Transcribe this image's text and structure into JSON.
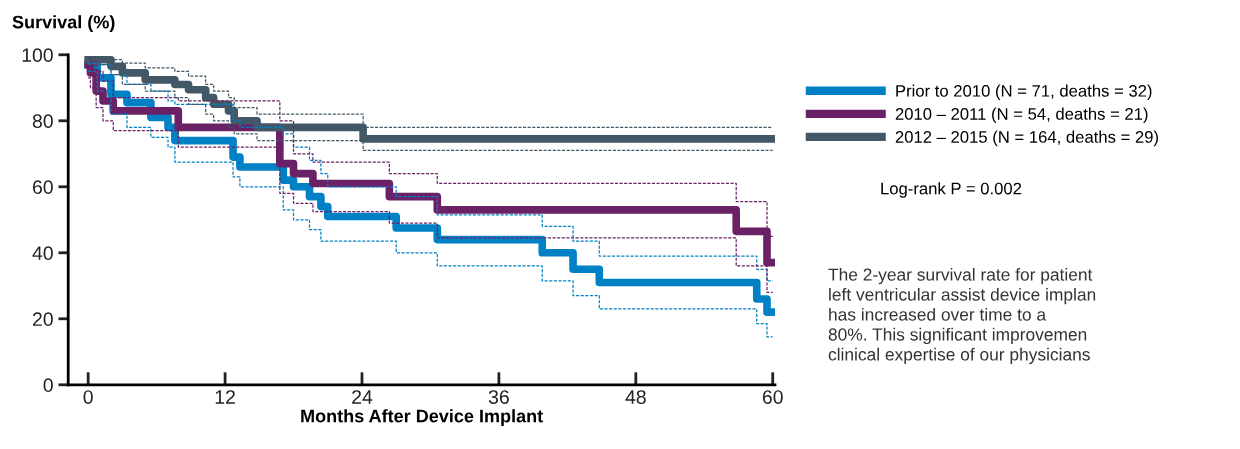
{
  "chart_data": {
    "type": "step",
    "ylabel": "Survival (%)",
    "xlabel": "Months After Device Implant",
    "xlim": [
      -1.75,
      60.2
    ],
    "xticks": [
      0,
      12,
      24,
      36,
      48,
      60
    ],
    "ylim": [
      0,
      100
    ],
    "yticks": [
      0,
      20,
      40,
      60,
      80,
      100
    ],
    "grid": false,
    "legend": "right",
    "line_style": "solid",
    "marker": "none",
    "series": [
      {
        "name": "Prior to 2010 (N = 71, deaths = 32)",
        "color": "#0081c6",
        "x": [
          0,
          0.8,
          2,
          3.4,
          5.5,
          7,
          7.6,
          12.7,
          13.3,
          17.1,
          18,
          19.4,
          20.4,
          21,
          27,
          30.6,
          39.8,
          42.5,
          44.8,
          58.6,
          59.5,
          60
        ],
        "values": [
          97,
          93,
          88,
          85.5,
          81,
          78,
          74,
          69,
          66,
          62,
          60,
          57,
          54,
          51,
          47.5,
          44,
          40,
          35,
          31,
          26,
          22,
          22
        ]
      },
      {
        "name": "2010 – 2011 (N = 54, deaths = 21)",
        "color": "#6a2166",
        "x": [
          0,
          0.2,
          0.7,
          1.3,
          2.2,
          7.9,
          16.8,
          18,
          19.7,
          26.4,
          30.6,
          56.8,
          59.5,
          60
        ],
        "values": [
          97,
          94.5,
          89,
          86,
          83,
          78,
          67,
          64,
          61,
          57,
          53,
          46.5,
          37,
          37
        ]
      },
      {
        "name": "2012 – 2015 (N = 164, deaths = 29)",
        "color": "#425866",
        "x": [
          0,
          2,
          3,
          5,
          7.6,
          8.8,
          10.3,
          11,
          12.3,
          12.8,
          14.8,
          24.1,
          60
        ],
        "values": [
          98.5,
          96.5,
          94.5,
          92.4,
          91,
          89.4,
          87,
          85,
          83,
          80,
          78,
          74.5,
          74.5
        ]
      },
      {
        "color": "#0081c6",
        "line_style": "dashed",
        "x": [
          0,
          0.8,
          2,
          3.4,
          5.5,
          7,
          7.6,
          12.7,
          13.3,
          17.1,
          18,
          19.4,
          20.4,
          21,
          27,
          30.6,
          39.8,
          42.5,
          44.8,
          58.6,
          59.5,
          60
        ],
        "values": [
          97.5,
          97,
          94,
          91,
          89,
          86,
          85,
          80,
          78,
          76,
          72,
          68,
          64,
          60,
          57,
          51.5,
          48,
          43.5,
          39,
          35,
          31.5,
          31.5
        ]
      },
      {
        "color": "#0081c6",
        "line_style": "dashed",
        "x": [
          0,
          0.8,
          2,
          3.4,
          5.5,
          7,
          7.6,
          12.7,
          13.3,
          17.1,
          18,
          19.4,
          20.4,
          21,
          27,
          30.6,
          39.8,
          42.5,
          44.8,
          58.6,
          59.5,
          60
        ],
        "values": [
          95,
          89,
          82,
          78,
          75,
          72,
          67.5,
          63,
          60,
          53,
          50,
          47,
          43.5,
          43.5,
          40,
          36,
          31.5,
          27,
          23,
          18.5,
          14.5,
          14.5
        ]
      },
      {
        "color": "#6a2166",
        "line_style": "dashed",
        "x": [
          0,
          0.2,
          0.7,
          1.3,
          2.2,
          7.9,
          16.8,
          18,
          19.7,
          26.4,
          30.6,
          56.8,
          59.5,
          60
        ],
        "values": [
          99,
          98,
          95,
          92,
          87,
          86,
          80,
          70,
          67.5,
          64,
          61,
          55.5,
          45,
          45
        ]
      },
      {
        "color": "#6a2166",
        "line_style": "dashed",
        "x": [
          0,
          0.2,
          0.7,
          1.3,
          2.2,
          7.9,
          16.8,
          18,
          19.7,
          26.4,
          30.6,
          56.8,
          59.5,
          60
        ],
        "values": [
          93,
          90,
          84,
          80,
          77,
          72,
          58,
          55,
          52.5,
          49,
          44.5,
          36,
          28,
          28
        ]
      },
      {
        "color": "#425866",
        "line_style": "dashed",
        "x": [
          0,
          2,
          3,
          5,
          7.6,
          8.8,
          10.3,
          11,
          12.3,
          12.8,
          14.8,
          24.1,
          60
        ],
        "values": [
          99,
          98.5,
          97.5,
          96,
          95,
          93.5,
          91,
          89,
          87,
          84,
          82,
          78,
          78
        ]
      },
      {
        "color": "#425866",
        "line_style": "dashed",
        "x": [
          0,
          2,
          3,
          5,
          7.6,
          8.8,
          10.3,
          11,
          12.3,
          12.8,
          14.8,
          24.1,
          60
        ],
        "values": [
          97,
          94,
          91,
          89,
          87,
          85,
          82,
          80,
          78,
          76,
          74,
          71,
          71
        ]
      }
    ],
    "annotations": [
      "Log-rank P = 0.002",
      "The 2-year survival rate for patient\nleft ventricular assist device implan\nhas increased over time to a\n80%. This significant improvemen\nclinical expertise of our physicians"
    ]
  }
}
